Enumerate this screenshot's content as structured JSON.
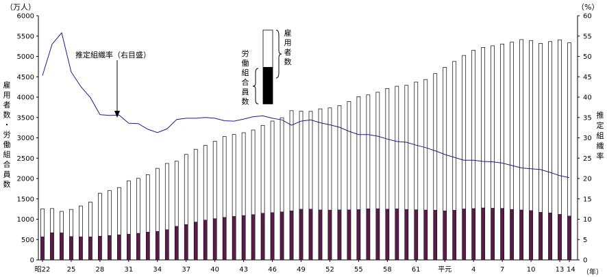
{
  "chart_data": {
    "type": "bar",
    "left_axis_unit": "（万人）",
    "right_axis_unit": "（%）",
    "year_unit": "（年）",
    "left_axis_title": [
      "雇",
      "用",
      "者",
      "数",
      "・",
      "労",
      "働",
      "組",
      "合",
      "員",
      "数"
    ],
    "right_axis_title": [
      "推",
      "定",
      "組",
      "織",
      "率"
    ],
    "left_ticks": [
      "0",
      "500",
      "1000",
      "1500",
      "2000",
      "2500",
      "3000",
      "3500",
      "4000",
      "4500",
      "5000",
      "5500",
      "6000"
    ],
    "right_ticks": [
      "0",
      "5",
      "10",
      "15",
      "20",
      "25",
      "30",
      "35",
      "40",
      "45",
      "50",
      "55",
      "60"
    ],
    "ylim_left": [
      0,
      6000
    ],
    "ylim_right": [
      0,
      60
    ],
    "x_tick_labels": [
      "昭22",
      "25",
      "28",
      "31",
      "34",
      "37",
      "40",
      "43",
      "46",
      "49",
      "52",
      "55",
      "58",
      "61",
      "平元",
      "4",
      "7",
      "10",
      "13",
      "14"
    ],
    "x_tick_indices": [
      0,
      3,
      6,
      9,
      12,
      15,
      18,
      21,
      24,
      27,
      30,
      33,
      36,
      39,
      42,
      45,
      48,
      51,
      54,
      55
    ],
    "years": [
      "22",
      "23",
      "24",
      "25",
      "26",
      "27",
      "28",
      "29",
      "30",
      "31",
      "32",
      "33",
      "34",
      "35",
      "36",
      "37",
      "38",
      "39",
      "40",
      "41",
      "42",
      "43",
      "44",
      "45",
      "46",
      "47",
      "48",
      "49",
      "50",
      "51",
      "52",
      "53",
      "54",
      "55",
      "56",
      "57",
      "58",
      "59",
      "60",
      "61",
      "62",
      "63",
      "平元",
      "2",
      "3",
      "4",
      "5",
      "6",
      "7",
      "8",
      "9",
      "10",
      "11",
      "12",
      "13",
      "14"
    ],
    "series": [
      {
        "name": "雇用者数",
        "color": "#ffffff",
        "values": [
          1256,
          1262,
          1193,
          1241,
          1326,
          1421,
          1636,
          1702,
          1778,
          1944,
          2004,
          2093,
          2250,
          2370,
          2425,
          2593,
          2719,
          2813,
          2914,
          3032,
          3082,
          3125,
          3193,
          3306,
          3412,
          3494,
          3667,
          3656,
          3650,
          3712,
          3735,
          3791,
          3893,
          4011,
          4055,
          4120,
          4213,
          4268,
          4290,
          4370,
          4434,
          4578,
          4730,
          4877,
          5024,
          5153,
          5221,
          5262,
          5306,
          5351,
          5414,
          5391,
          5321,
          5365,
          5408,
          5334
        ]
      },
      {
        "name": "労働組合員数",
        "color": "#5c1a4a",
        "values": [
          569,
          668,
          665,
          576,
          570,
          566,
          584,
          602,
          617,
          632,
          655,
          685,
          703,
          743,
          826,
          871,
          932,
          981,
          1015,
          1046,
          1070,
          1092,
          1115,
          1148,
          1163,
          1180,
          1208,
          1246,
          1247,
          1229,
          1226,
          1231,
          1232,
          1237,
          1257,
          1259,
          1248,
          1255,
          1242,
          1234,
          1227,
          1224,
          1208,
          1221,
          1253,
          1262,
          1278,
          1271,
          1268,
          1243,
          1228,
          1214,
          1170,
          1157,
          1121,
          1080
        ]
      },
      {
        "name": "推定組織率（右目盛）",
        "color": "#1a1a8c",
        "values": [
          45.3,
          53.0,
          55.8,
          46.2,
          42.6,
          39.9,
          35.7,
          35.5,
          35.6,
          33.6,
          33.5,
          32.1,
          31.3,
          32.2,
          34.5,
          34.8,
          34.8,
          35.0,
          34.8,
          34.2,
          34.1,
          34.6,
          35.2,
          35.4,
          34.8,
          34.4,
          33.1,
          34.1,
          34.4,
          33.7,
          33.2,
          32.6,
          31.6,
          30.8,
          30.8,
          30.4,
          29.7,
          29.1,
          28.9,
          28.2,
          27.6,
          26.8,
          25.9,
          25.2,
          24.5,
          24.5,
          24.2,
          24.1,
          23.8,
          23.2,
          22.6,
          22.4,
          22.2,
          21.5,
          20.7,
          20.2
        ]
      }
    ],
    "annotations": {
      "rate_label": "推定組織率（右目盛）",
      "legend_union": [
        "労",
        "働",
        "組",
        "合",
        "員",
        "数"
      ],
      "legend_employee": [
        "雇",
        "用",
        "者",
        "数"
      ]
    },
    "grid": false
  }
}
